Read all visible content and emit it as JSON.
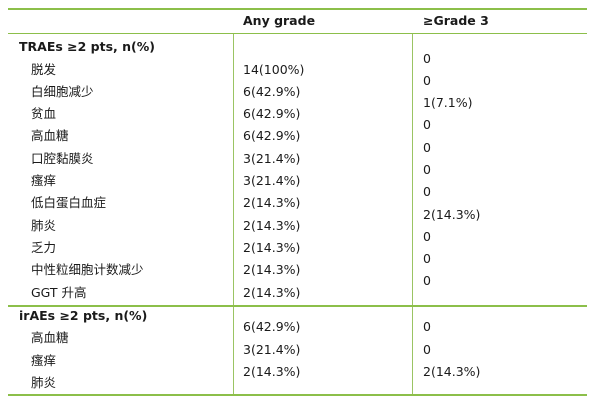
{
  "header": {
    "col_any": "Any grade",
    "col_g3": "≥Grade 3"
  },
  "traes": {
    "title": "TRAEs ≥2 pts, n(%)",
    "rows": [
      {
        "label": "脱发",
        "any": "14(100%)"
      },
      {
        "label": "白细胞减少",
        "any": "6(42.9%)"
      },
      {
        "label": "贫血",
        "any": "6(42.9%)"
      },
      {
        "label": "高血糖",
        "any": "6(42.9%)"
      },
      {
        "label": "口腔黏膜炎",
        "any": "3(21.4%)"
      },
      {
        "label": "瘙痒",
        "any": "3(21.4%)"
      },
      {
        "label": "低白蛋白血症",
        "any": "2(14.3%)"
      },
      {
        "label": "肺炎",
        "any": "2(14.3%)"
      },
      {
        "label": "乏力",
        "any": "2(14.3%)"
      },
      {
        "label": "中性粒细胞计数减少",
        "any": "2(14.3%)"
      },
      {
        "label": "GGT 升高",
        "any": "2(14.3%)"
      }
    ],
    "g3": [
      "0",
      "0",
      "1(7.1%)",
      "0",
      "0",
      "0",
      "0",
      "2(14.3%)",
      "0",
      "0",
      "0"
    ]
  },
  "iraes": {
    "title": "irAEs ≥2 pts, n(%)",
    "rows": [
      {
        "label": "高血糖",
        "any": "6(42.9%)",
        "g3": "0"
      },
      {
        "label": "瘙痒",
        "any": "3(21.4%)",
        "g3": "0"
      },
      {
        "label": "肺炎",
        "any": "2(14.3%)",
        "g3": "2(14.3%)"
      }
    ]
  },
  "colors": {
    "rule": "#8cbf4a",
    "divider": "#9bc463"
  }
}
